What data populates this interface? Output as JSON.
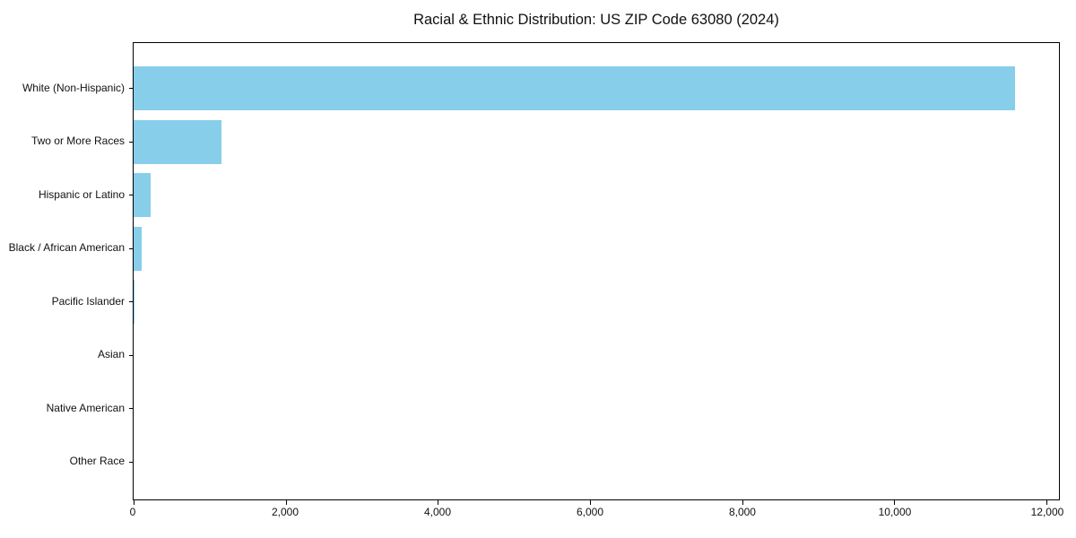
{
  "title": "Racial & Ethnic Distribution: US ZIP Code 63080 (2024)",
  "colors": {
    "bar": "#87CEEB",
    "axis": "#000000",
    "text": "#111111",
    "background": "#ffffff"
  },
  "chart_data": {
    "type": "bar",
    "orientation": "horizontal",
    "title": "Racial & Ethnic Distribution: US ZIP Code 63080 (2024)",
    "xlabel": "",
    "ylabel": "",
    "categories": [
      "White (Non-Hispanic)",
      "Two or More Races",
      "Hispanic or Latino",
      "Black / African American",
      "Pacific Islander",
      "Asian",
      "Native American",
      "Other Race"
    ],
    "values": [
      11590,
      1150,
      220,
      110,
      12,
      0,
      0,
      0
    ],
    "xlim": [
      0,
      12165
    ],
    "x_ticks": [
      0,
      2000,
      4000,
      6000,
      8000,
      10000,
      12000
    ],
    "x_tick_labels": [
      "0",
      "2,000",
      "4,000",
      "6,000",
      "8,000",
      "10,000",
      "12,000"
    ],
    "bar_color": "#87CEEB",
    "grid": false,
    "legend": null
  }
}
